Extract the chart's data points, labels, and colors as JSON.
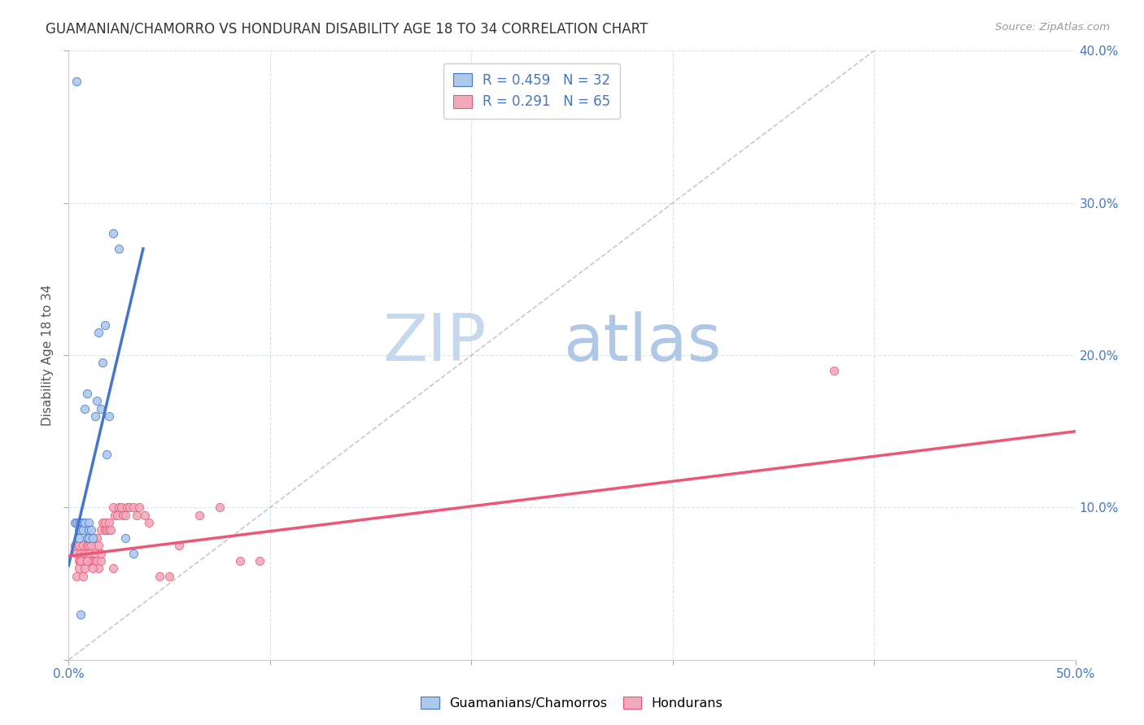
{
  "title": "GUAMANIAN/CHAMORRO VS HONDURAN DISABILITY AGE 18 TO 34 CORRELATION CHART",
  "source": "Source: ZipAtlas.com",
  "ylabel": "Disability Age 18 to 34",
  "xlim": [
    0.0,
    0.5
  ],
  "ylim": [
    0.0,
    0.4
  ],
  "xticks": [
    0.0,
    0.1,
    0.2,
    0.3,
    0.4,
    0.5
  ],
  "yticks": [
    0.0,
    0.1,
    0.2,
    0.3,
    0.4
  ],
  "legend_r1": "R = 0.459",
  "legend_n1": "N = 32",
  "legend_r2": "R = 0.291",
  "legend_n2": "N = 65",
  "color_blue": "#adc8ed",
  "color_pink": "#f0aabb",
  "line_color_blue": "#4477cc",
  "line_color_pink": "#ee5577",
  "diagonal_color": "#bbbbbb",
  "watermark_zip": "ZIP",
  "watermark_atlas": "atlas",
  "watermark_color_zip": "#c5d8ee",
  "watermark_color_atlas": "#b0c8e8",
  "grid_color": "#d8e4ee",
  "right_tick_color": "#4477cc",
  "guamanian_x": [
    0.003,
    0.004,
    0.005,
    0.005,
    0.005,
    0.006,
    0.006,
    0.007,
    0.007,
    0.008,
    0.008,
    0.009,
    0.009,
    0.01,
    0.01,
    0.01,
    0.011,
    0.012,
    0.013,
    0.014,
    0.015,
    0.016,
    0.017,
    0.018,
    0.019,
    0.02,
    0.022,
    0.025,
    0.028,
    0.032,
    0.004,
    0.006
  ],
  "guamanian_y": [
    0.09,
    0.09,
    0.09,
    0.085,
    0.08,
    0.09,
    0.085,
    0.09,
    0.085,
    0.09,
    0.165,
    0.175,
    0.08,
    0.09,
    0.085,
    0.08,
    0.085,
    0.08,
    0.16,
    0.17,
    0.215,
    0.165,
    0.195,
    0.22,
    0.135,
    0.16,
    0.28,
    0.27,
    0.08,
    0.07,
    0.38,
    0.03
  ],
  "honduran_x": [
    0.003,
    0.004,
    0.005,
    0.005,
    0.006,
    0.006,
    0.007,
    0.007,
    0.008,
    0.008,
    0.009,
    0.009,
    0.01,
    0.01,
    0.01,
    0.011,
    0.011,
    0.012,
    0.012,
    0.013,
    0.013,
    0.014,
    0.014,
    0.015,
    0.015,
    0.016,
    0.016,
    0.017,
    0.018,
    0.018,
    0.019,
    0.02,
    0.02,
    0.021,
    0.022,
    0.023,
    0.024,
    0.025,
    0.026,
    0.027,
    0.028,
    0.029,
    0.03,
    0.032,
    0.034,
    0.035,
    0.038,
    0.04,
    0.045,
    0.05,
    0.055,
    0.065,
    0.075,
    0.085,
    0.095,
    0.38,
    0.004,
    0.005,
    0.006,
    0.007,
    0.008,
    0.009,
    0.012,
    0.016,
    0.022
  ],
  "honduran_y": [
    0.075,
    0.07,
    0.075,
    0.065,
    0.07,
    0.065,
    0.075,
    0.065,
    0.07,
    0.065,
    0.075,
    0.065,
    0.07,
    0.065,
    0.075,
    0.075,
    0.065,
    0.08,
    0.065,
    0.07,
    0.065,
    0.08,
    0.065,
    0.075,
    0.06,
    0.065,
    0.085,
    0.09,
    0.085,
    0.09,
    0.085,
    0.085,
    0.09,
    0.085,
    0.1,
    0.095,
    0.095,
    0.1,
    0.1,
    0.095,
    0.095,
    0.1,
    0.1,
    0.1,
    0.095,
    0.1,
    0.095,
    0.09,
    0.055,
    0.055,
    0.075,
    0.095,
    0.1,
    0.065,
    0.065,
    0.19,
    0.055,
    0.06,
    0.065,
    0.055,
    0.06,
    0.065,
    0.06,
    0.07,
    0.06
  ],
  "blue_line_x": [
    0.0,
    0.037
  ],
  "blue_line_y": [
    0.062,
    0.27
  ],
  "pink_line_x": [
    0.0,
    0.5
  ],
  "pink_line_y": [
    0.068,
    0.15
  ]
}
